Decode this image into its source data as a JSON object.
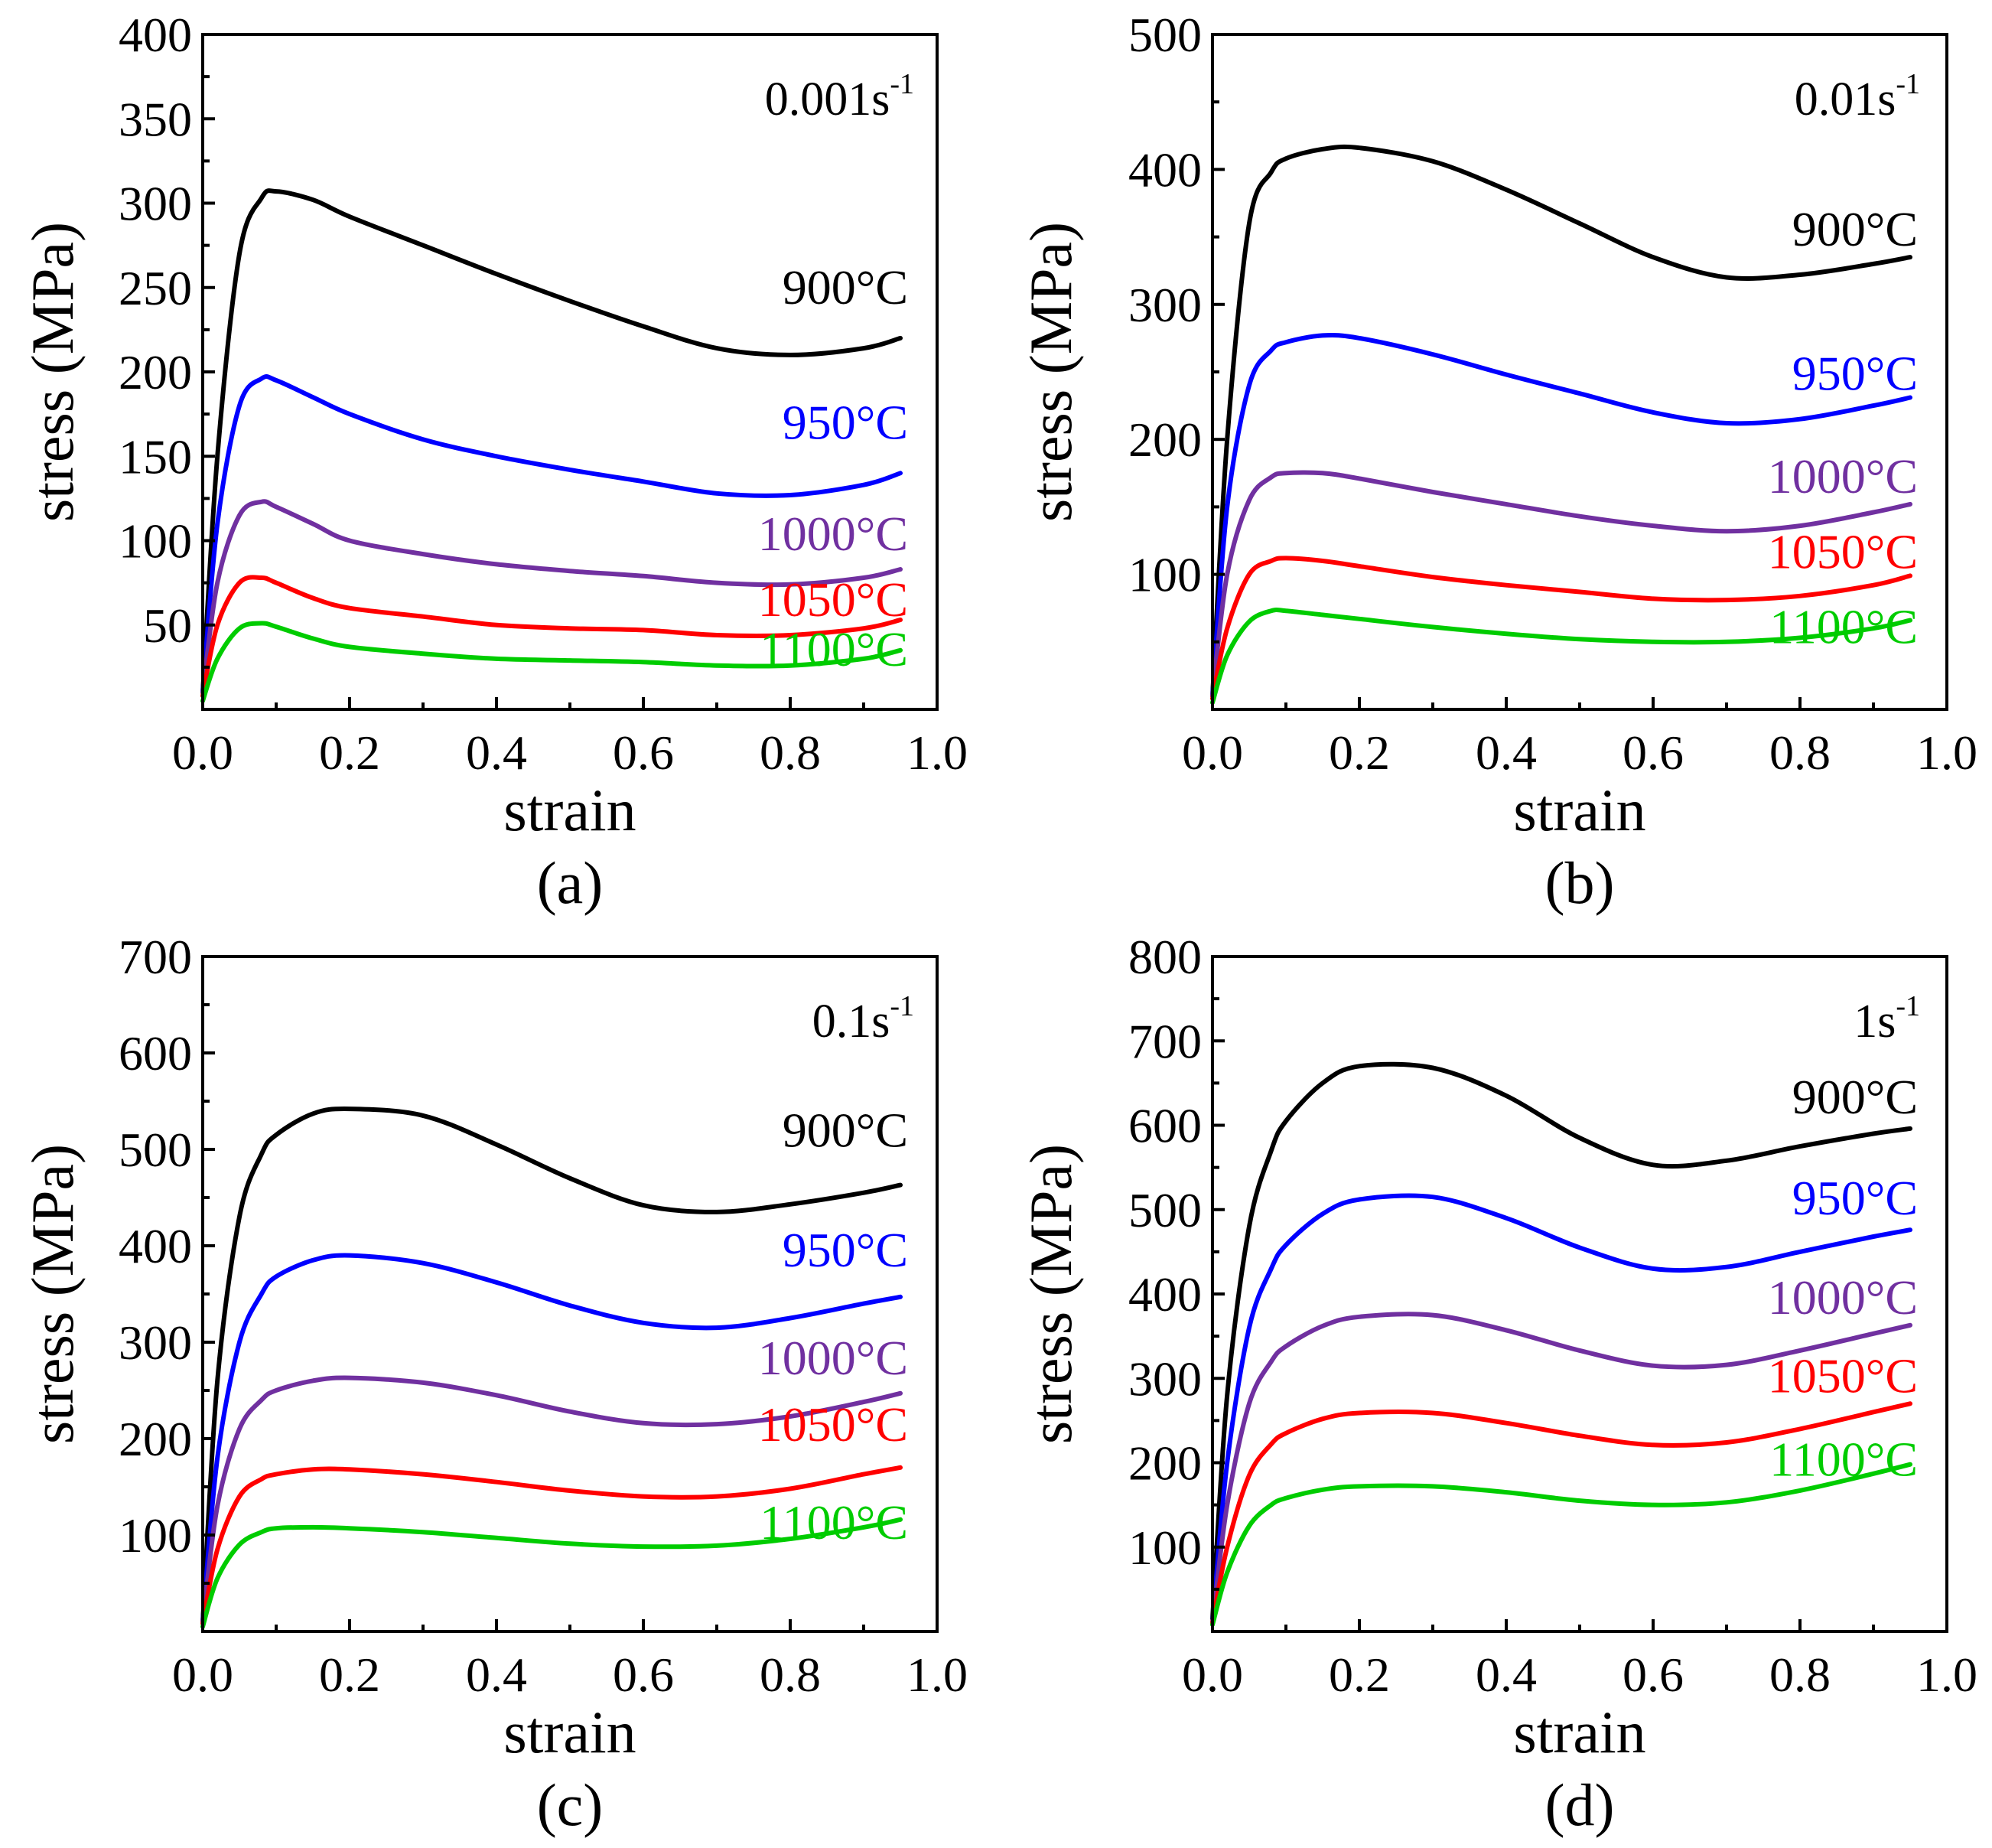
{
  "figure": {
    "panels": [
      {
        "id": "a",
        "caption": "(a)",
        "rate_base": "0.001s",
        "rate_exp": "-1",
        "chart_data": {
          "type": "line",
          "xlabel": "strain",
          "ylabel": "stress (MPa)",
          "xlim": [
            0,
            1.0
          ],
          "ylim": [
            0,
            400
          ],
          "xticks": [
            "0.0",
            "0.2",
            "0.4",
            "0.6",
            "0.8",
            "1.0"
          ],
          "yticks": [
            "50",
            "100",
            "150",
            "200",
            "250",
            "300",
            "350",
            "400"
          ],
          "x": [
            0.0,
            0.02,
            0.05,
            0.08,
            0.1,
            0.15,
            0.2,
            0.3,
            0.4,
            0.5,
            0.6,
            0.7,
            0.8,
            0.9,
            0.95
          ],
          "series": [
            {
              "name": "900°C",
              "color": "#000000",
              "values": [
                10,
                150,
                270,
                303,
                307,
                302,
                292,
                275,
                258,
                242,
                227,
                214,
                210,
                214,
                220
              ]
            },
            {
              "name": "950°C",
              "color": "#0000ff",
              "values": [
                10,
                110,
                180,
                196,
                195,
                185,
                175,
                160,
                150,
                142,
                135,
                128,
                127,
                133,
                140
              ]
            },
            {
              "name": "1000°C",
              "color": "#7030a0",
              "values": [
                10,
                75,
                115,
                123,
                120,
                110,
                100,
                92,
                86,
                82,
                79,
                75,
                74,
                78,
                83
              ]
            },
            {
              "name": "1050°C",
              "color": "#ff0000",
              "values": [
                8,
                50,
                75,
                78,
                75,
                66,
                60,
                55,
                50,
                48,
                47,
                44,
                44,
                48,
                53
              ]
            },
            {
              "name": "1100°C",
              "color": "#00cc00",
              "values": [
                5,
                30,
                48,
                51,
                49,
                42,
                37,
                33,
                30,
                29,
                28,
                26,
                26,
                30,
                35
              ]
            }
          ]
        }
      },
      {
        "id": "b",
        "caption": "(b)",
        "rate_base": "0.01s",
        "rate_exp": "-1",
        "chart_data": {
          "type": "line",
          "xlabel": "strain",
          "ylabel": "stress (MPa)",
          "xlim": [
            0,
            1.0
          ],
          "ylim": [
            0,
            500
          ],
          "xticks": [
            "0.0",
            "0.2",
            "0.4",
            "0.6",
            "0.8",
            "1.0"
          ],
          "yticks": [
            "100",
            "200",
            "300",
            "400",
            "500"
          ],
          "x": [
            0.0,
            0.02,
            0.05,
            0.08,
            0.1,
            0.15,
            0.2,
            0.3,
            0.4,
            0.5,
            0.6,
            0.7,
            0.8,
            0.9,
            0.95
          ],
          "series": [
            {
              "name": "900°C",
              "color": "#000000",
              "values": [
                10,
                200,
                360,
                398,
                408,
                415,
                416,
                406,
                385,
                360,
                335,
                320,
                322,
                330,
                335
              ]
            },
            {
              "name": "950°C",
              "color": "#0000ff",
              "values": [
                10,
                150,
                240,
                266,
                272,
                277,
                275,
                263,
                248,
                234,
                220,
                212,
                215,
                225,
                231
              ]
            },
            {
              "name": "1000°C",
              "color": "#7030a0",
              "values": [
                10,
                100,
                155,
                172,
                175,
                175,
                171,
                161,
                152,
                143,
                136,
                132,
                136,
                146,
                152
              ]
            },
            {
              "name": "1050°C",
              "color": "#ff0000",
              "values": [
                8,
                60,
                100,
                110,
                112,
                110,
                106,
                98,
                92,
                87,
                82,
                81,
                84,
                92,
                99
              ]
            },
            {
              "name": "1100°C",
              "color": "#00cc00",
              "values": [
                5,
                40,
                65,
                73,
                73,
                70,
                67,
                61,
                56,
                52,
                50,
                50,
                53,
                60,
                66
              ]
            }
          ]
        }
      },
      {
        "id": "c",
        "caption": "(c)",
        "rate_base": "0.1s",
        "rate_exp": "-1",
        "chart_data": {
          "type": "line",
          "xlabel": "strain",
          "ylabel": "stress (MPa)",
          "xlim": [
            0,
            1.0
          ],
          "ylim": [
            0,
            700
          ],
          "xticks": [
            "0.0",
            "0.2",
            "0.4",
            "0.6",
            "0.8",
            "1.0"
          ],
          "yticks": [
            "100",
            "200",
            "300",
            "400",
            "500",
            "600",
            "700"
          ],
          "x": [
            0.0,
            0.02,
            0.05,
            0.08,
            0.1,
            0.15,
            0.2,
            0.3,
            0.4,
            0.5,
            0.6,
            0.7,
            0.8,
            0.9,
            0.95
          ],
          "series": [
            {
              "name": "900°C",
              "color": "#000000",
              "values": [
                10,
                260,
                430,
                495,
                515,
                537,
                542,
                535,
                505,
                470,
                442,
                435,
                443,
                455,
                463
              ]
            },
            {
              "name": "950°C",
              "color": "#0000ff",
              "values": [
                10,
                180,
                300,
                350,
                368,
                385,
                390,
                382,
                362,
                338,
                320,
                315,
                325,
                340,
                347
              ]
            },
            {
              "name": "1000°C",
              "color": "#7030a0",
              "values": [
                10,
                130,
                210,
                240,
                250,
                260,
                263,
                258,
                245,
                228,
                216,
                215,
                223,
                238,
                247
              ]
            },
            {
              "name": "1050°C",
              "color": "#ff0000",
              "values": [
                8,
                85,
                140,
                158,
                163,
                168,
                168,
                163,
                155,
                146,
                140,
                140,
                148,
                163,
                170
              ]
            },
            {
              "name": "1100°C",
              "color": "#00cc00",
              "values": [
                5,
                55,
                90,
                103,
                107,
                108,
                107,
                103,
                97,
                91,
                88,
                89,
                96,
                108,
                116
              ]
            }
          ]
        }
      },
      {
        "id": "d",
        "caption": "(d)",
        "rate_base": "1s",
        "rate_exp": "-1",
        "chart_data": {
          "type": "line",
          "xlabel": "strain",
          "ylabel": "stress (MPa)",
          "xlim": [
            0,
            1.0
          ],
          "ylim": [
            0,
            800
          ],
          "xticks": [
            "0.0",
            "0.2",
            "0.4",
            "0.6",
            "0.8",
            "1.0"
          ],
          "yticks": [
            "100",
            "200",
            "300",
            "400",
            "500",
            "600",
            "700",
            "800"
          ],
          "x": [
            0.0,
            0.02,
            0.05,
            0.08,
            0.1,
            0.15,
            0.2,
            0.3,
            0.4,
            0.5,
            0.6,
            0.7,
            0.8,
            0.9,
            0.95
          ],
          "series": [
            {
              "name": "900°C",
              "color": "#000000",
              "values": [
                15,
                280,
                480,
                570,
                605,
                650,
                670,
                668,
                635,
                585,
                553,
                558,
                575,
                590,
                596
              ]
            },
            {
              "name": "950°C",
              "color": "#0000ff",
              "values": [
                10,
                200,
                360,
                430,
                458,
                495,
                512,
                515,
                490,
                455,
                430,
                432,
                450,
                468,
                476
              ]
            },
            {
              "name": "1000°C",
              "color": "#7030a0",
              "values": [
                10,
                150,
                270,
                320,
                338,
                362,
                373,
                375,
                357,
                333,
                315,
                316,
                333,
                353,
                363
              ]
            },
            {
              "name": "1050°C",
              "color": "#ff0000",
              "values": [
                10,
                100,
                185,
                222,
                235,
                252,
                259,
                259,
                247,
                232,
                221,
                224,
                240,
                260,
                270
              ]
            },
            {
              "name": "1100°C",
              "color": "#00cc00",
              "values": [
                8,
                70,
                125,
                150,
                158,
                168,
                172,
                172,
                165,
                155,
                150,
                153,
                167,
                187,
                198
              ]
            }
          ]
        }
      }
    ]
  }
}
